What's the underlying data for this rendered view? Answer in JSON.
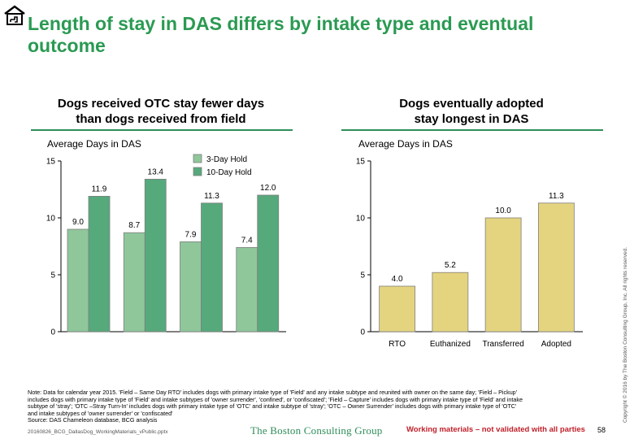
{
  "slide": {
    "title": "Length of stay in DAS differs by intake type and eventual outcome",
    "page_number": "58",
    "brand": "The Boston Consulting Group",
    "warning": "Working materials – not validated with all parties",
    "file_name": "20160826_BCG_DallasDog_WorkingMaterials_vPublic.pptx",
    "copyright": "Copyright © 2016 by The Boston Consulting Group, Inc. All rights reserved.",
    "note": {
      "line1": "Note: Data for calendar year 2015. 'Field – Same Day RTO' includes dogs with primary intake type of 'Field' and any intake subtype and reunited with owner on the same day; 'Field – Pickup'",
      "line2": "includes dogs with primary intake type of 'Field' and intake subtypes of 'owner surrender', 'confined', or 'confiscated'; 'Field – Capture' includes dogs with primary intake type of 'Field' and intake",
      "line3": "subtype of 'stray'; 'OTC –Stray Turn-In' includes dogs with primary intake type of 'OTC' and intake subtype of 'stray'; 'OTC – Owner Surrender' includes dogs with primary intake type of 'OTC'",
      "line4": "and intake subtypes of 'owner surrender' or 'confiscated'",
      "source": "Source: DAS Chameleon database, BCG analysis"
    }
  },
  "chart_data": [
    {
      "type": "bar",
      "heading_line1": "Dogs received OTC stay fewer days",
      "heading_line2": "than dogs received from field",
      "ylabel": "Average Days in DAS",
      "ylim": [
        0,
        15
      ],
      "yticks": [
        "0",
        "5",
        "10",
        "15"
      ],
      "categories": [
        "",
        "",
        "",
        ""
      ],
      "series": [
        {
          "name": "3-Day Hold",
          "color": "#8fc79b",
          "values": [
            9.0,
            8.7,
            7.9,
            7.4
          ],
          "labels": [
            "9.0",
            "8.7",
            "7.9",
            "7.4"
          ]
        },
        {
          "name": "10-Day Hold",
          "color": "#56a97b",
          "values": [
            11.9,
            13.4,
            11.3,
            12.0
          ],
          "labels": [
            "11.9",
            "13.4",
            "11.3",
            "12.0"
          ]
        }
      ],
      "legend": "top-right"
    },
    {
      "type": "bar",
      "heading_line1": "Dogs eventually adopted",
      "heading_line2": "stay longest in DAS",
      "ylabel": "Average Days in DAS",
      "ylim": [
        0,
        15
      ],
      "yticks": [
        "0",
        "5",
        "10",
        "15"
      ],
      "categories": [
        "RTO",
        "Euthanized",
        "Transferred",
        "Adopted"
      ],
      "values": [
        4.0,
        5.2,
        10.0,
        11.3
      ],
      "labels": [
        "4.0",
        "5.2",
        "10.0",
        "11.3"
      ],
      "color": "#e5d47f"
    }
  ]
}
